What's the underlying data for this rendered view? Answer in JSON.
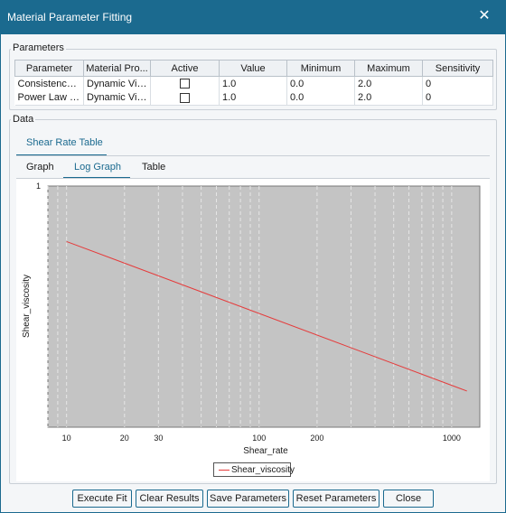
{
  "window": {
    "title": "Material Parameter Fitting"
  },
  "parameters": {
    "group_label": "Parameters",
    "columns": [
      "Parameter",
      "Material Pro...",
      "Active",
      "Value",
      "Minimum",
      "Maximum",
      "Sensitivity"
    ],
    "rows": [
      [
        "Consistency ...",
        "Dynamic Vis...",
        "",
        "1.0",
        "0.0",
        "2.0",
        "0"
      ],
      [
        "Power Law E...",
        "Dynamic Vis...",
        "",
        "1.0",
        "0.0",
        "2.0",
        "0"
      ]
    ]
  },
  "data": {
    "group_label": "Data",
    "outer_tab": "Shear Rate Table",
    "tabs": [
      "Graph",
      "Log Graph",
      "Table"
    ],
    "active_tab": "Log Graph"
  },
  "chart_data": {
    "type": "line",
    "xscale": "log",
    "xlim": [
      8,
      1400
    ],
    "x_ticks": [
      10,
      20,
      30,
      100,
      200,
      1000
    ],
    "y_ticks": [
      1
    ],
    "xlabel": "Shear_rate",
    "ylabel": "Shear_viscosity",
    "grid": true,
    "legend": "bottom",
    "series": [
      {
        "name": "Shear_viscosity",
        "color": "#e53b3b",
        "x": [
          10,
          1200
        ],
        "y": [
          0.77,
          0.15
        ]
      }
    ]
  },
  "buttons": {
    "execute_fit": "Execute Fit",
    "clear_results": "Clear Results",
    "save_parameters": "Save Parameters",
    "reset_parameters": "Reset Parameters",
    "close": "Close"
  }
}
